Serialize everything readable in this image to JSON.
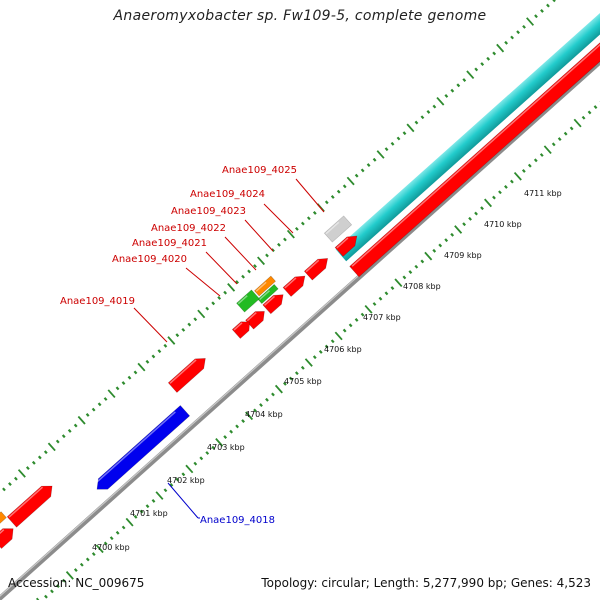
{
  "title": "Anaeromyxobacter sp. Fw109-5, complete genome",
  "footer": {
    "accession": "Accession: NC_009675",
    "summary": "Topology: circular; Length: 5,277,990 bp; Genes: 4,523"
  },
  "colors": {
    "background": "#ffffff",
    "backbone": "#8c8c8c",
    "tick": "#2e8b2e",
    "label_red": "#cc0000",
    "label_blue": "#0000cc",
    "gene_red": "#ff0000",
    "gene_blue": "#0000ee",
    "gene_green": "#22bb22",
    "gene_orange": "#ff8800",
    "gene_gray": "#cfcfcf",
    "gene_cyan": "#22cccc"
  },
  "scale_labels": [
    "4700 kbp",
    "4701 kbp",
    "4702 kbp",
    "4703 kbp",
    "4704 kbp",
    "4705 kbp",
    "4706 kbp",
    "4707 kbp",
    "4708 kbp",
    "4709 kbp",
    "4710 kbp",
    "4711 kbp"
  ],
  "gene_labels": [
    {
      "text": "Anae109_4025",
      "color": "red"
    },
    {
      "text": "Anae109_4024",
      "color": "red"
    },
    {
      "text": "Anae109_4023",
      "color": "red"
    },
    {
      "text": "Anae109_4022",
      "color": "red"
    },
    {
      "text": "Anae109_4021",
      "color": "red"
    },
    {
      "text": "Anae109_4020",
      "color": "red"
    },
    {
      "text": "Anae109_4019",
      "color": "red"
    },
    {
      "text": "Anae109_4018",
      "color": "blue"
    }
  ]
}
